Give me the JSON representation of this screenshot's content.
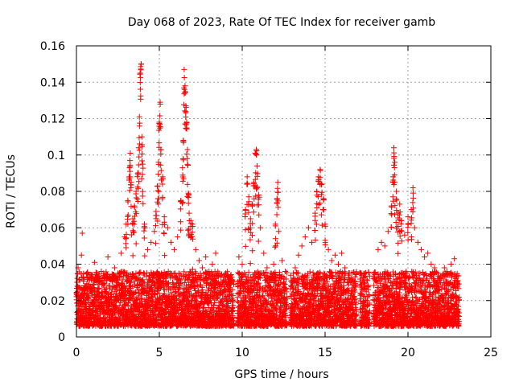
{
  "chart_data": {
    "type": "scatter",
    "title": "Day 068 of 2023, Rate Of TEC Index for receiver gamb",
    "xlabel": "GPS time / hours",
    "ylabel": "ROTI / TECUs",
    "xlim": [
      0,
      25
    ],
    "ylim": [
      0,
      0.16
    ],
    "x_ticks": [
      0,
      5,
      10,
      15,
      20,
      25
    ],
    "x_tick_labels": [
      "0",
      "5",
      "10",
      "15",
      "20",
      "25"
    ],
    "y_ticks": [
      0,
      0.02,
      0.04,
      0.06,
      0.08,
      0.1,
      0.12,
      0.14,
      0.16
    ],
    "y_tick_labels": [
      "0",
      "0.02",
      "0.04",
      "0.06",
      "0.08",
      "0.1",
      "0.12",
      "0.14",
      "0.16"
    ],
    "grid": true,
    "marker": "+",
    "marker_color": "#ff0000",
    "data_gaps_hours": [
      [
        9.5,
        9.7
      ],
      [
        12.7,
        12.9
      ],
      [
        16.9,
        17.1
      ],
      [
        17.7,
        17.9
      ]
    ],
    "series": [
      {
        "values_summary": "dense ROTI points, background 0.005-0.035 TECUs across 0-23 h",
        "points": [
          [
            0.0,
            0.024
          ],
          [
            0.1,
            0.038
          ],
          [
            0.2,
            0.031
          ],
          [
            0.3,
            0.045
          ],
          [
            0.35,
            0.057
          ],
          [
            0.5,
            0.028
          ],
          [
            0.7,
            0.033
          ],
          [
            0.9,
            0.026
          ],
          [
            1.1,
            0.041
          ],
          [
            1.3,
            0.03
          ],
          [
            1.5,
            0.036
          ],
          [
            1.7,
            0.027
          ],
          [
            1.9,
            0.044
          ],
          [
            2.1,
            0.032
          ],
          [
            2.3,
            0.038
          ],
          [
            2.5,
            0.035
          ],
          [
            2.7,
            0.046
          ],
          [
            2.9,
            0.055
          ],
          [
            3.0,
            0.062
          ],
          [
            3.1,
            0.075
          ],
          [
            3.2,
            0.093
          ],
          [
            3.25,
            0.101
          ],
          [
            3.3,
            0.085
          ],
          [
            3.4,
            0.065
          ],
          [
            3.5,
            0.072
          ],
          [
            3.6,
            0.08
          ],
          [
            3.7,
            0.09
          ],
          [
            3.75,
            0.104
          ],
          [
            3.8,
            0.121
          ],
          [
            3.85,
            0.145
          ],
          [
            3.9,
            0.15
          ],
          [
            3.95,
            0.11
          ],
          [
            4.0,
            0.095
          ],
          [
            4.1,
            0.062
          ],
          [
            4.3,
            0.048
          ],
          [
            4.5,
            0.052
          ],
          [
            4.7,
            0.058
          ],
          [
            4.8,
            0.069
          ],
          [
            4.9,
            0.083
          ],
          [
            4.95,
            0.096
          ],
          [
            5.0,
            0.118
          ],
          [
            5.05,
            0.129
          ],
          [
            5.1,
            0.103
          ],
          [
            5.2,
            0.088
          ],
          [
            5.3,
            0.066
          ],
          [
            5.5,
            0.06
          ],
          [
            5.7,
            0.052
          ],
          [
            5.9,
            0.048
          ],
          [
            6.1,
            0.055
          ],
          [
            6.3,
            0.075
          ],
          [
            6.4,
            0.093
          ],
          [
            6.45,
            0.108
          ],
          [
            6.5,
            0.147
          ],
          [
            6.55,
            0.138
          ],
          [
            6.6,
            0.127
          ],
          [
            6.65,
            0.118
          ],
          [
            6.7,
            0.103
          ],
          [
            6.75,
            0.079
          ],
          [
            6.8,
            0.068
          ],
          [
            6.9,
            0.064
          ],
          [
            7.0,
            0.062
          ],
          [
            7.2,
            0.048
          ],
          [
            7.4,
            0.042
          ],
          [
            7.6,
            0.038
          ],
          [
            7.8,
            0.044
          ],
          [
            8.0,
            0.036
          ],
          [
            8.2,
            0.04
          ],
          [
            8.4,
            0.046
          ],
          [
            8.6,
            0.035
          ],
          [
            8.8,
            0.03
          ],
          [
            9.0,
            0.033
          ],
          [
            9.2,
            0.028
          ],
          [
            9.4,
            0.031
          ],
          [
            9.8,
            0.044
          ],
          [
            10.0,
            0.04
          ],
          [
            10.2,
            0.07
          ],
          [
            10.3,
            0.088
          ],
          [
            10.4,
            0.077
          ],
          [
            10.5,
            0.065
          ],
          [
            10.6,
            0.073
          ],
          [
            10.7,
            0.085
          ],
          [
            10.8,
            0.101
          ],
          [
            10.85,
            0.103
          ],
          [
            10.9,
            0.094
          ],
          [
            11.0,
            0.078
          ],
          [
            11.1,
            0.06
          ],
          [
            11.3,
            0.046
          ],
          [
            11.5,
            0.038
          ],
          [
            11.7,
            0.035
          ],
          [
            11.9,
            0.04
          ],
          [
            12.0,
            0.062
          ],
          [
            12.1,
            0.076
          ],
          [
            12.15,
            0.085
          ],
          [
            12.2,
            0.058
          ],
          [
            12.4,
            0.042
          ],
          [
            12.6,
            0.036
          ],
          [
            13.0,
            0.03
          ],
          [
            13.2,
            0.038
          ],
          [
            13.4,
            0.045
          ],
          [
            13.6,
            0.05
          ],
          [
            13.8,
            0.055
          ],
          [
            14.0,
            0.06
          ],
          [
            14.2,
            0.052
          ],
          [
            14.4,
            0.068
          ],
          [
            14.5,
            0.08
          ],
          [
            14.6,
            0.088
          ],
          [
            14.7,
            0.092
          ],
          [
            14.8,
            0.084
          ],
          [
            14.9,
            0.076
          ],
          [
            15.0,
            0.062
          ],
          [
            15.2,
            0.048
          ],
          [
            15.4,
            0.042
          ],
          [
            15.6,
            0.045
          ],
          [
            15.8,
            0.04
          ],
          [
            16.0,
            0.046
          ],
          [
            16.2,
            0.038
          ],
          [
            16.4,
            0.034
          ],
          [
            16.6,
            0.03
          ],
          [
            16.8,
            0.028
          ],
          [
            17.2,
            0.034
          ],
          [
            17.4,
            0.03
          ],
          [
            17.6,
            0.026
          ],
          [
            18.0,
            0.032
          ],
          [
            18.2,
            0.048
          ],
          [
            18.4,
            0.052
          ],
          [
            18.6,
            0.05
          ],
          [
            18.8,
            0.058
          ],
          [
            19.0,
            0.072
          ],
          [
            19.1,
            0.088
          ],
          [
            19.15,
            0.104
          ],
          [
            19.2,
            0.096
          ],
          [
            19.3,
            0.08
          ],
          [
            19.4,
            0.068
          ],
          [
            19.5,
            0.073
          ],
          [
            19.6,
            0.064
          ],
          [
            19.8,
            0.056
          ],
          [
            20.0,
            0.066
          ],
          [
            20.2,
            0.07
          ],
          [
            20.3,
            0.082
          ],
          [
            20.4,
            0.06
          ],
          [
            20.6,
            0.052
          ],
          [
            20.8,
            0.048
          ],
          [
            21.0,
            0.044
          ],
          [
            21.2,
            0.046
          ],
          [
            21.4,
            0.04
          ],
          [
            21.6,
            0.038
          ],
          [
            21.8,
            0.035
          ],
          [
            22.0,
            0.032
          ],
          [
            22.2,
            0.038
          ],
          [
            22.4,
            0.034
          ],
          [
            22.6,
            0.04
          ],
          [
            22.8,
            0.043
          ],
          [
            23.0,
            0.031
          ]
        ]
      }
    ]
  }
}
